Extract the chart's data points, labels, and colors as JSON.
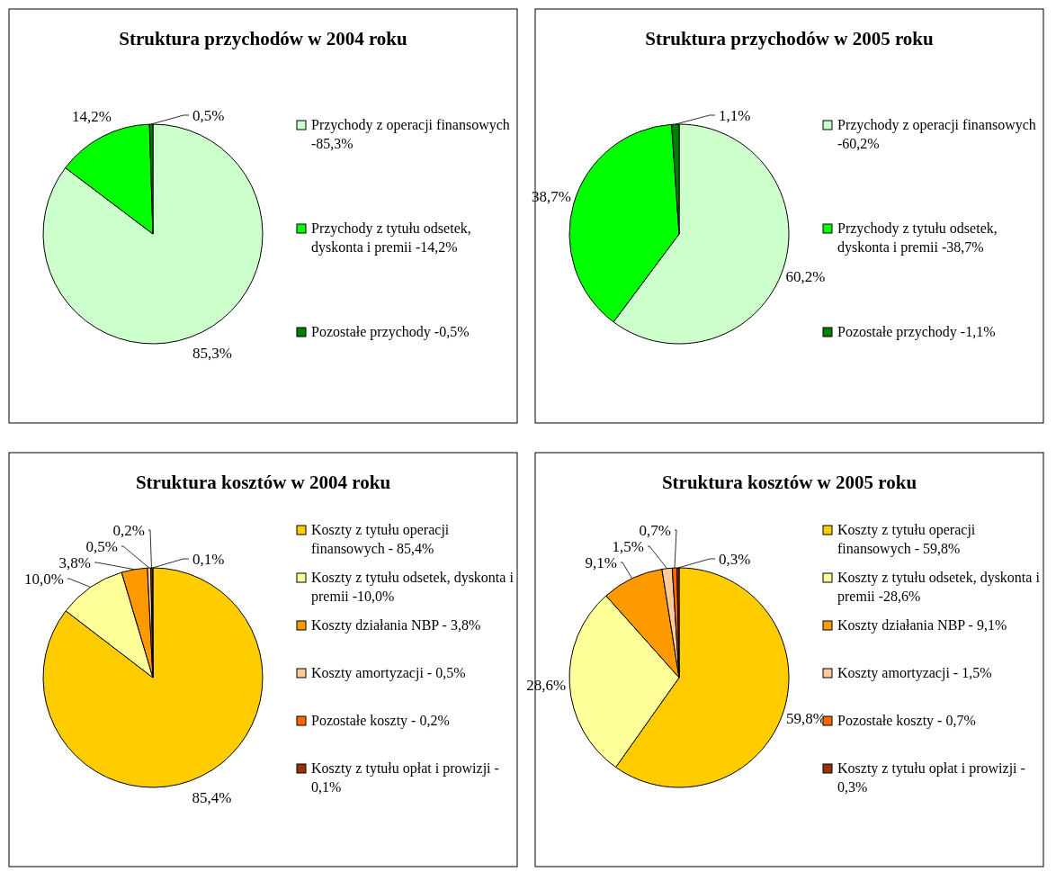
{
  "chart_data": [
    {
      "type": "pie",
      "title": "Struktura przychodów w 2004 roku",
      "categories": [
        "Przychody z operacji finansowych -85,3%",
        "Przychody z tytułu odsetek, dyskonta i premii -14,2%",
        "Pozostałe przychody -0,5%"
      ],
      "values": [
        85.3,
        14.2,
        0.5
      ],
      "colors": [
        "#ccffcc",
        "#00ff00",
        "#008000"
      ],
      "value_labels": [
        "85,3%",
        "14,2%",
        "0,5%"
      ],
      "legend": "right"
    },
    {
      "type": "pie",
      "title": "Struktura przychodów w 2005 roku",
      "categories": [
        "Przychody z operacji finansowych -60,2%",
        "Przychody z tytułu odsetek, dyskonta i premii -38,7%",
        "Pozostałe przychody -1,1%"
      ],
      "values": [
        60.2,
        38.7,
        1.1
      ],
      "colors": [
        "#ccffcc",
        "#00ff00",
        "#008000"
      ],
      "value_labels": [
        "60,2%",
        "38,7%",
        "1,1%"
      ],
      "legend": "right"
    },
    {
      "type": "pie",
      "title": "Struktura kosztów w 2004 roku",
      "categories": [
        "Koszty z tytułu operacji finansowych - 85,4%",
        "Koszty z tytułu odsetek, dyskonta i premii -10,0%",
        "Koszty działania NBP - 3,8%",
        "Koszty amortyzacji - 0,5%",
        "Pozostałe koszty - 0,2%",
        "Koszty z tytułu opłat i prowizji - 0,1%"
      ],
      "values": [
        85.4,
        10.0,
        3.8,
        0.5,
        0.2,
        0.1
      ],
      "colors": [
        "#ffcc00",
        "#ffff99",
        "#ff9900",
        "#ffcc99",
        "#ff6600",
        "#993300"
      ],
      "value_labels": [
        "85,4%",
        "10,0%",
        "3,8%",
        "0,5%",
        "0,2%",
        "0,1%"
      ],
      "legend": "right"
    },
    {
      "type": "pie",
      "title": "Struktura kosztów w 2005 roku",
      "categories": [
        "Koszty z tytułu operacji finansowych - 59,8%",
        "Koszty z tytułu odsetek, dyskonta i premii -28,6%",
        "Koszty działania NBP - 9,1%",
        "Koszty amortyzacji - 1,5%",
        "Pozostałe koszty - 0,7%",
        "Koszty z tytułu opłat i prowizji - 0,3%"
      ],
      "values": [
        59.8,
        28.6,
        9.1,
        1.5,
        0.7,
        0.3
      ],
      "colors": [
        "#ffcc00",
        "#ffff99",
        "#ff9900",
        "#ffcc99",
        "#ff6600",
        "#993300"
      ],
      "value_labels": [
        "59,8%",
        "28,6%",
        "9,1%",
        "1,5%",
        "0,7%",
        "0,3%"
      ],
      "legend": "right"
    }
  ]
}
